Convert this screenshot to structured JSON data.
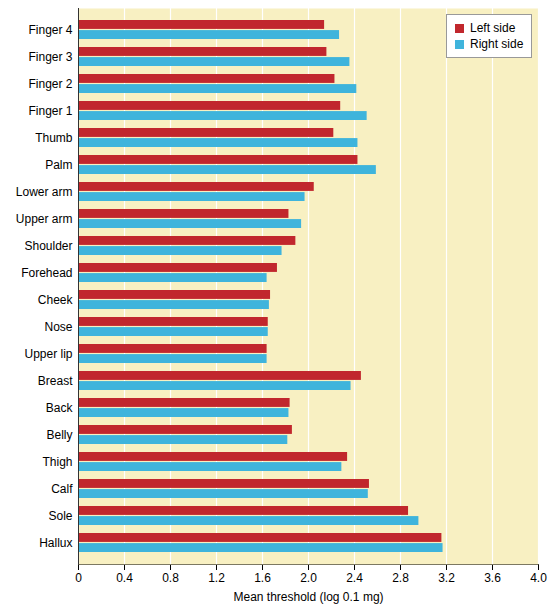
{
  "chart_data": {
    "type": "bar",
    "orientation": "horizontal",
    "categories": [
      "Finger 4",
      "Finger 3",
      "Finger 2",
      "Finger 1",
      "Thumb",
      "Palm",
      "Lower arm",
      "Upper arm",
      "Shoulder",
      "Forehead",
      "Cheek",
      "Nose",
      "Upper lip",
      "Breast",
      "Back",
      "Belly",
      "Thigh",
      "Calf",
      "Sole",
      "Hallux"
    ],
    "series": [
      {
        "name": "Left side",
        "color": "#c1272d",
        "values": [
          2.14,
          2.16,
          2.23,
          2.28,
          2.22,
          2.43,
          2.05,
          1.83,
          1.89,
          1.73,
          1.67,
          1.65,
          1.64,
          2.46,
          1.84,
          1.86,
          2.34,
          2.53,
          2.87,
          3.16
        ]
      },
      {
        "name": "Right side",
        "color": "#3fb4dc",
        "values": [
          2.27,
          2.36,
          2.42,
          2.51,
          2.43,
          2.59,
          1.97,
          1.94,
          1.77,
          1.64,
          1.66,
          1.65,
          1.64,
          2.37,
          1.83,
          1.82,
          2.29,
          2.52,
          2.96,
          3.17
        ]
      }
    ],
    "xlabel": "Mean threshold (log 0.1 mg)",
    "xlim": [
      0,
      4
    ],
    "xticks": [
      0,
      0.4,
      0.8,
      1.2,
      1.6,
      {
        "value": 2,
        "label": "2.0"
      },
      2.4,
      2.8,
      3.2,
      3.6,
      {
        "value": 4,
        "label": "4.0"
      }
    ],
    "grid": true,
    "legend": "top-right"
  }
}
